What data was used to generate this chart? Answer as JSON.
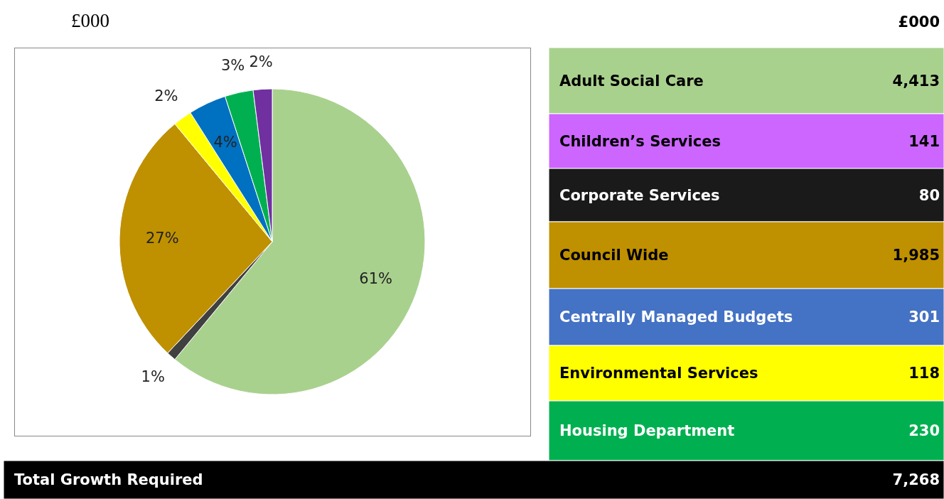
{
  "chart_data": [
    {
      "type": "pie",
      "title": "£000",
      "categories": [
        null,
        null,
        null,
        null,
        null,
        null,
        null
      ],
      "values": [
        61,
        1,
        27,
        2,
        4,
        3,
        2
      ],
      "colors": [
        "#a9d18e",
        "#404040",
        "#bf9000",
        "#ffff00",
        "#0070c0",
        "#00b050",
        "#7030a0"
      ],
      "value_labels": [
        "61%",
        "1%",
        "27%",
        "2%",
        "4%",
        "3%",
        "2%"
      ]
    },
    {
      "type": "other",
      "title": "£000",
      "categories": [
        "Adult Social Care",
        "Children’s Services",
        "Corporate Services",
        "Council Wide",
        "Centrally Managed Budgets",
        "Environmental Services",
        "Housing Department"
      ],
      "values": [
        4413,
        141,
        80,
        1985,
        301,
        118,
        230
      ],
      "colors": [
        "#a9d18e",
        "#cc66ff",
        "#1a1a1a",
        "#bf9000",
        "#4472c4",
        "#ffff00",
        "#00b050"
      ],
      "value_labels": [
        "4,413",
        "141",
        "80",
        "1,985",
        "301",
        "118",
        "230"
      ]
    },
    {
      "type": "other",
      "categories": [
        "Total Growth Required"
      ],
      "values": [
        7268
      ],
      "colors": [
        "#000000"
      ],
      "value_labels": [
        "7,268"
      ]
    }
  ]
}
